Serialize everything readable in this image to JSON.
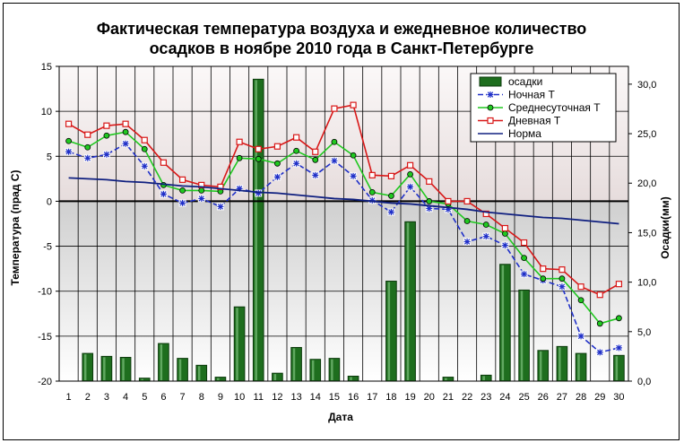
{
  "chart_data": {
    "type": "bar+line",
    "title_lines": [
      "Фактическая температура воздуха и ежедневное количество",
      "осадков в ноябре 2010 года в Санкт-Петербурге"
    ],
    "xlabel": "Дата",
    "ylabel_left": "Температура (прад С)",
    "ylabel_right": "Осадки(мм)",
    "categories": [
      "1",
      "2",
      "3",
      "4",
      "5",
      "6",
      "7",
      "8",
      "9",
      "10",
      "11",
      "12",
      "13",
      "14",
      "15",
      "16",
      "17",
      "18",
      "19",
      "20",
      "21",
      "22",
      "23",
      "24",
      "25",
      "26",
      "27",
      "28",
      "29",
      "30"
    ],
    "ylim_left": [
      -20,
      15
    ],
    "ylim_right": [
      0,
      31.8
    ],
    "yticks_left": [
      "15",
      "10",
      "5",
      "0",
      "-5",
      "-10",
      "-15",
      "-20"
    ],
    "yticks_right": [
      "30,0",
      "25,0",
      "20,0",
      "15,0",
      "10,0",
      "5,0",
      "0,0"
    ],
    "grid": true,
    "legend_position": "top-right",
    "series": [
      {
        "name": "осадки",
        "kind": "bar",
        "axis": "right",
        "color": "#1e6e1e",
        "values": [
          0,
          2.8,
          2.5,
          2.4,
          0.3,
          3.8,
          2.3,
          1.6,
          0.4,
          7.5,
          30.5,
          0.8,
          3.4,
          2.2,
          2.3,
          0.5,
          0,
          10.1,
          16.1,
          0,
          0.4,
          0,
          0.6,
          11.8,
          9.2,
          3.1,
          3.5,
          2.8,
          0,
          2.6
        ]
      },
      {
        "name": "Ночная T",
        "kind": "line",
        "axis": "left",
        "color": "#2030c8",
        "marker": "star",
        "values": [
          5.5,
          4.8,
          5.2,
          6.4,
          3.9,
          0.8,
          -0.2,
          0.3,
          -0.6,
          1.4,
          0.9,
          2.7,
          4.2,
          2.9,
          4.5,
          2.8,
          0.1,
          -1.2,
          1.6,
          -0.8,
          -0.9,
          -4.5,
          -3.9,
          -4.9,
          -8.1,
          -8.8,
          -9.5,
          -15.0,
          -16.8,
          -16.3
        ]
      },
      {
        "name": "Среднесуточная T",
        "kind": "line",
        "axis": "left",
        "color": "#20c820",
        "marker": "circle",
        "values": [
          6.7,
          6.0,
          7.3,
          7.7,
          5.8,
          1.8,
          1.2,
          1.2,
          1.1,
          4.8,
          4.7,
          4.2,
          5.6,
          4.6,
          6.6,
          5.1,
          1.0,
          0.6,
          3.0,
          0.0,
          -0.3,
          -2.2,
          -2.6,
          -3.6,
          -6.3,
          -8.6,
          -8.6,
          -11.0,
          -13.6,
          -13.0
        ]
      },
      {
        "name": "Дневная T",
        "kind": "line",
        "axis": "left",
        "color": "#d81818",
        "marker": "square",
        "values": [
          8.6,
          7.4,
          8.4,
          8.6,
          6.8,
          4.3,
          2.4,
          1.8,
          1.6,
          6.6,
          5.8,
          6.1,
          7.1,
          5.5,
          10.3,
          10.7,
          2.9,
          2.8,
          4.0,
          2.2,
          0.0,
          0.0,
          -1.4,
          -3.0,
          -4.6,
          -7.5,
          -7.6,
          -9.5,
          -10.4,
          -9.2
        ]
      },
      {
        "name": "Норма",
        "kind": "line",
        "axis": "left",
        "color": "#102080",
        "marker": "none",
        "values": [
          2.6,
          2.5,
          2.4,
          2.2,
          2.1,
          1.9,
          1.7,
          1.6,
          1.4,
          1.2,
          1.0,
          0.9,
          0.7,
          0.5,
          0.3,
          0.2,
          0.0,
          -0.2,
          -0.3,
          -0.5,
          -0.7,
          -0.9,
          -1.2,
          -1.4,
          -1.6,
          -1.8,
          -1.9,
          -2.1,
          -2.3,
          -2.5
        ]
      }
    ]
  }
}
